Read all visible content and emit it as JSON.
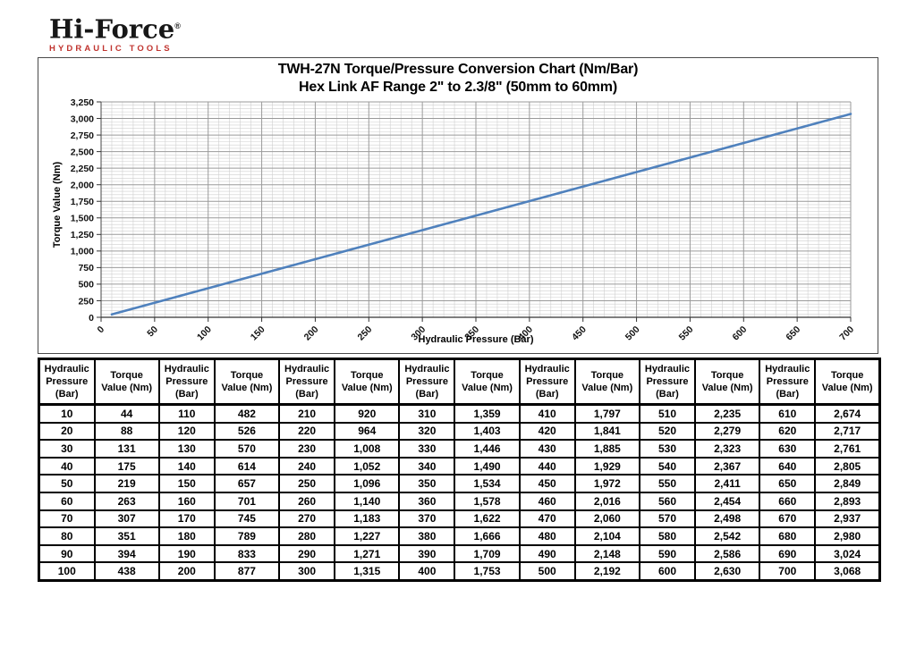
{
  "logo": {
    "brand": "Hi-Force",
    "registered": "®",
    "tagline": "HYDRAULIC TOOLS",
    "tagline_color": "#c0342f"
  },
  "chart": {
    "title_line1": "TWH-27N Torque/Pressure Conversion Chart (Nm/Bar)",
    "title_line2": "Hex Link AF Range 2\" to 2.3/8\" (50mm to 60mm)",
    "xlabel": "Hydraulic Pressure (Bar)",
    "ylabel": "Torque Value (Nm)"
  },
  "chart_data": {
    "type": "line",
    "title": "TWH-27N Torque/Pressure Conversion Chart (Nm/Bar)",
    "subtitle": "Hex Link AF Range 2\" to 2.3/8\" (50mm to 60mm)",
    "xlabel": "Hydraulic Pressure (Bar)",
    "ylabel": "Torque Value (Nm)",
    "xlim": [
      0,
      700
    ],
    "ylim": [
      0,
      3250
    ],
    "x_major_ticks": [
      0,
      50,
      100,
      150,
      200,
      250,
      300,
      350,
      400,
      450,
      500,
      550,
      600,
      650,
      700
    ],
    "y_major_ticks": [
      0,
      250,
      500,
      750,
      1000,
      1250,
      1500,
      1750,
      2000,
      2250,
      2500,
      2750,
      3000,
      3250
    ],
    "x_minor_step": 10,
    "y_minor_step": 50,
    "grid": "major+minor",
    "legend": "none",
    "line_color": "#4F81BD",
    "major_grid_color": "#9a9a9a",
    "minor_grid_color": "#cfcfcf",
    "axis_color": "#333333",
    "x": [
      10,
      20,
      30,
      40,
      50,
      60,
      70,
      80,
      90,
      100,
      110,
      120,
      130,
      140,
      150,
      160,
      170,
      180,
      190,
      200,
      210,
      220,
      230,
      240,
      250,
      260,
      270,
      280,
      290,
      300,
      310,
      320,
      330,
      340,
      350,
      360,
      370,
      380,
      390,
      400,
      410,
      420,
      430,
      440,
      450,
      460,
      470,
      480,
      490,
      500,
      510,
      520,
      530,
      540,
      550,
      560,
      570,
      580,
      590,
      600,
      610,
      620,
      630,
      640,
      650,
      660,
      670,
      680,
      690,
      700
    ],
    "y": [
      44,
      88,
      131,
      175,
      219,
      263,
      307,
      351,
      394,
      438,
      482,
      526,
      570,
      614,
      657,
      701,
      745,
      789,
      833,
      877,
      920,
      964,
      1008,
      1052,
      1096,
      1140,
      1183,
      1227,
      1271,
      1315,
      1359,
      1403,
      1446,
      1490,
      1534,
      1578,
      1622,
      1666,
      1709,
      1753,
      1797,
      1841,
      1885,
      1929,
      1972,
      2016,
      2060,
      2104,
      2148,
      2192,
      2235,
      2279,
      2323,
      2367,
      2411,
      2454,
      2498,
      2542,
      2586,
      2630,
      2674,
      2717,
      2761,
      2805,
      2849,
      2893,
      2937,
      2980,
      3024,
      3068
    ]
  },
  "table": {
    "pressure_header_lines": [
      "Hydraulic",
      "Pressure",
      "(Bar)"
    ],
    "torque_header_lines": [
      "Torque",
      "Value (Nm)"
    ],
    "column_pairs": 7,
    "rows_per_pair": 10
  }
}
